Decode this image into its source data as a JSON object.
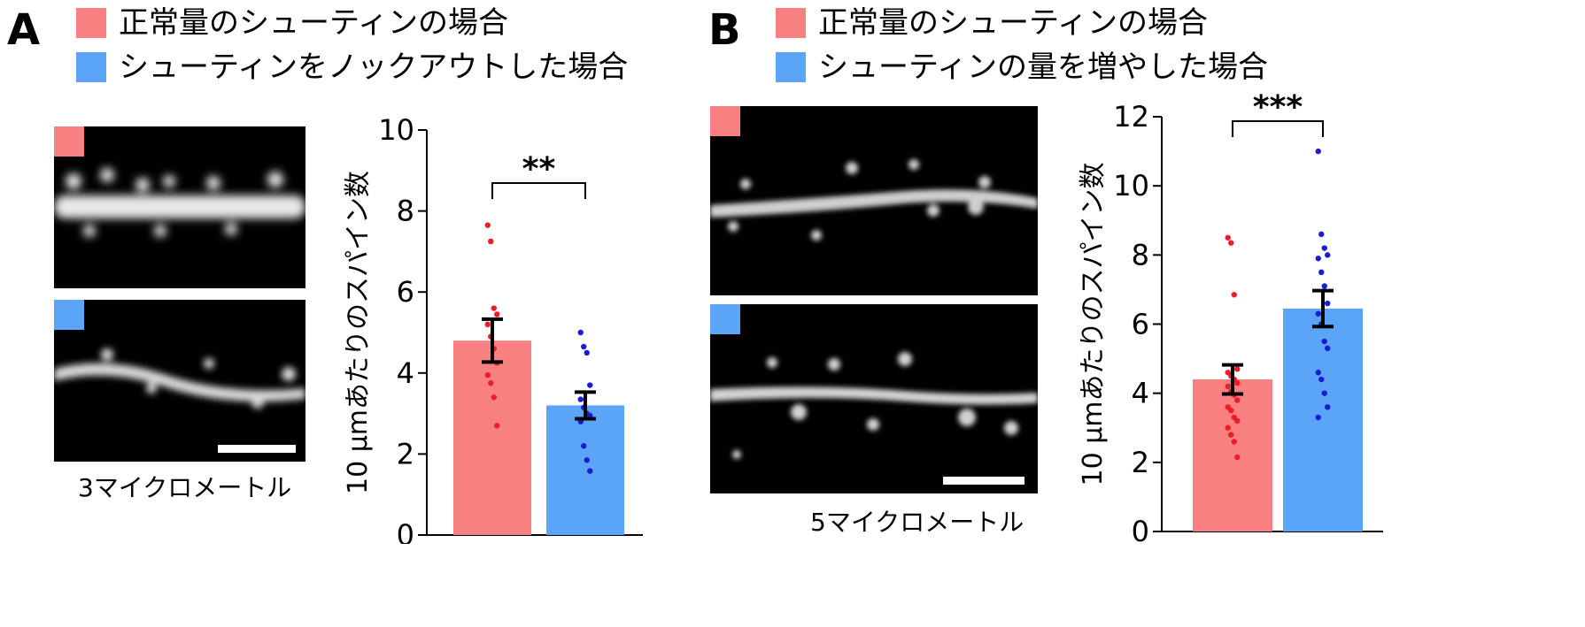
{
  "colors": {
    "normal": "#f98080",
    "blue": "#5ba5f8",
    "dot_red": "#ee1c24",
    "dot_blue": "#1b1bd6"
  },
  "panels": [
    {
      "letter": "A",
      "legend": [
        "正常量のシューティンの場合",
        "シューティンをノックアウトした場合"
      ],
      "scale_label": "3マイクロメートル",
      "chart_data": {
        "type": "bar",
        "categories": [
          "正常量のシューティンの場合",
          "シューティンをノックアウトした場合"
        ],
        "values": [
          4.8,
          3.2
        ],
        "errors": [
          0.53,
          0.33
        ],
        "points": [
          [
            7.65,
            7.25,
            5.6,
            5.45,
            5.2,
            4.9,
            4.6,
            4.25,
            3.95,
            3.75,
            3.4,
            2.7
          ],
          [
            5.0,
            4.65,
            4.5,
            3.7,
            3.35,
            3.15,
            3.0,
            2.95,
            2.8,
            2.2,
            1.85,
            1.58
          ]
        ],
        "ylabel": "10 μmあたりのスパイン数",
        "ylim": [
          0,
          10
        ],
        "yticks": [
          0,
          2,
          4,
          6,
          8,
          10
        ],
        "significance": "**"
      }
    },
    {
      "letter": "B",
      "legend": [
        "正常量のシューティンの場合",
        "シューティンの量を増やした場合"
      ],
      "scale_label": "5マイクロメートル",
      "chart_data": {
        "type": "bar",
        "categories": [
          "正常量のシューティンの場合",
          "シューティンの量を増やした場合"
        ],
        "values": [
          4.4,
          6.45
        ],
        "errors": [
          0.42,
          0.52
        ],
        "points": [
          [
            8.5,
            8.35,
            6.85,
            4.7,
            4.6,
            4.5,
            4.4,
            4.3,
            4.2,
            4.05,
            3.95,
            3.8,
            3.6,
            3.5,
            3.3,
            3.2,
            3.0,
            2.8,
            2.6,
            2.15
          ],
          [
            11.0,
            8.6,
            8.2,
            8.0,
            7.9,
            7.5,
            7.1,
            6.6,
            6.3,
            6.0,
            5.5,
            5.3,
            4.6,
            4.4,
            4.0,
            3.6,
            3.3
          ]
        ],
        "ylabel": "10 μmあたりのスパイン数",
        "ylim": [
          0,
          12
        ],
        "yticks": [
          0,
          2,
          4,
          6,
          8,
          10,
          12
        ],
        "significance": "***"
      }
    }
  ]
}
